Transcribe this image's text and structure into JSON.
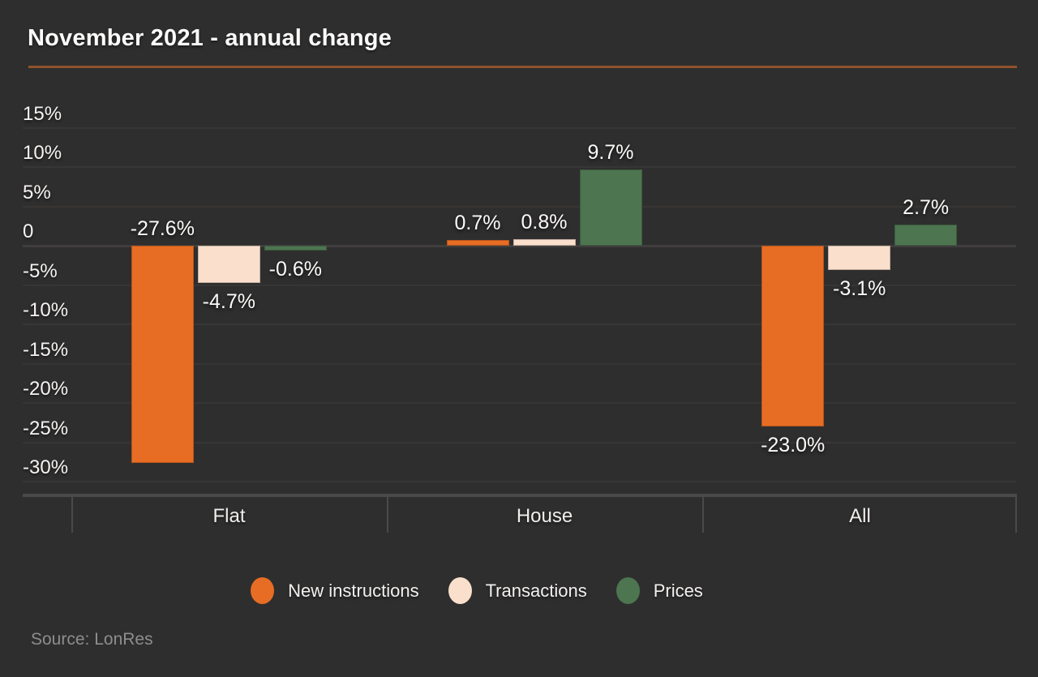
{
  "title": "November 2021 - annual change",
  "source": "Source: LonRes",
  "colors": {
    "background": "#2f2e2e",
    "title_text": "#fcfbfa",
    "title_rule": "#91512a",
    "axis_text": "#f4f3f1",
    "gridline": "#373635",
    "zero_line": "#403e3d",
    "axis_line": "#4b4a49",
    "source_text": "#8e8d8c",
    "new_instructions": "#e76d24",
    "transactions": "#f9dfcc",
    "prices": "#4d7550"
  },
  "chart_data": {
    "type": "bar",
    "title": "November 2021 - annual change",
    "categories": [
      "Flat",
      "House",
      "All"
    ],
    "series": [
      {
        "name": "New instructions",
        "color": "#e76d24",
        "values": [
          -27.6,
          0.7,
          -23.0
        ],
        "labels": [
          "-27.6%",
          "0.7%",
          "-23.0%"
        ],
        "label_side": [
          "above",
          "above",
          "below"
        ]
      },
      {
        "name": "Transactions",
        "color": "#f9dfcc",
        "values": [
          -4.7,
          0.8,
          -3.1
        ],
        "labels": [
          "-4.7%",
          "0.8%",
          "-3.1%"
        ],
        "label_side": [
          "below",
          "above",
          "below"
        ]
      },
      {
        "name": "Prices",
        "color": "#4d7550",
        "values": [
          -0.6,
          9.7,
          2.7
        ],
        "labels": [
          "-0.6%",
          "9.7%",
          "2.7%"
        ],
        "label_side": [
          "below",
          "above",
          "above"
        ]
      }
    ],
    "y_axis": {
      "ticks": [
        {
          "label": "15%",
          "value": 15
        },
        {
          "label": "10%",
          "value": 10
        },
        {
          "label": "5%",
          "value": 5
        },
        {
          "label": "0",
          "value": 0
        },
        {
          "label": "-5%",
          "value": -5
        },
        {
          "label": "-10%",
          "value": -10
        },
        {
          "label": "-15%",
          "value": -15
        },
        {
          "label": "-20%",
          "value": -20
        },
        {
          "label": "-25%",
          "value": -25
        },
        {
          "label": "-30%",
          "value": -30
        }
      ],
      "range": [
        -30,
        15
      ],
      "unit": "%"
    },
    "grid": true,
    "legend_position": "bottom",
    "source": "Source: LonRes"
  }
}
